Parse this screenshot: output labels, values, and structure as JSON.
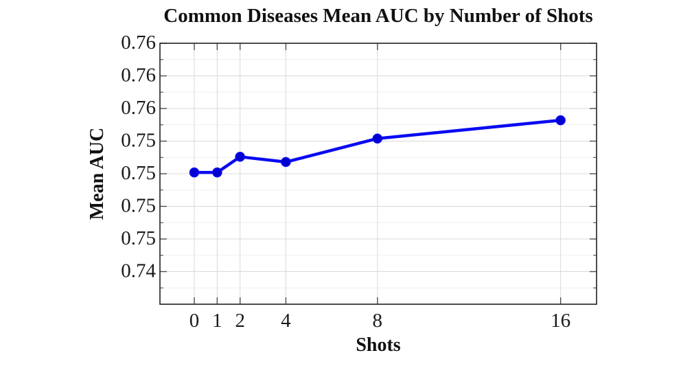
{
  "chart_data": {
    "type": "line",
    "title": "Common Diseases Mean AUC by Number of Shots",
    "xlabel": "Shots",
    "ylabel": "Mean AUC",
    "x": [
      0,
      1,
      2,
      4,
      8,
      16
    ],
    "series": [
      {
        "name": "Mean AUC",
        "values": [
          0.7501,
          0.7501,
          0.7513,
          0.7509,
          0.7527,
          0.7541
        ]
      }
    ],
    "xlim": [
      -1.5,
      17.57
    ],
    "ylim": [
      0.74,
      0.76
    ],
    "x_ticks": {
      "values": [
        0,
        1,
        2,
        4,
        8,
        16
      ],
      "labels": [
        "0",
        "1",
        "2",
        "4",
        "8",
        "16"
      ]
    },
    "y_ticks": {
      "values": [
        0.76,
        0.7575,
        0.755,
        0.7525,
        0.75,
        0.7475,
        0.745,
        0.7425
      ],
      "labels": [
        "0.76",
        "0.76",
        "0.76",
        "0.75",
        "0.75",
        "0.75",
        "0.75",
        "0.74"
      ]
    },
    "y_minor_ticks": [
      0.74125,
      0.74375,
      0.74625,
      0.74875,
      0.75125,
      0.75375,
      0.75625,
      0.75875
    ],
    "grid": "major-and-minor-horizontal, major-vertical",
    "legend": "none",
    "marker": "filled-circle",
    "colors": {
      "line": "#0a0af2",
      "marker_fill": "#0000cf",
      "grid_major": "#d8d8d8",
      "grid_minor": "#f0f0f0",
      "axis": "#1f1f1f",
      "tick": "#4d4d4d",
      "text": "#1a1a1a",
      "background": "#ffffff"
    }
  }
}
